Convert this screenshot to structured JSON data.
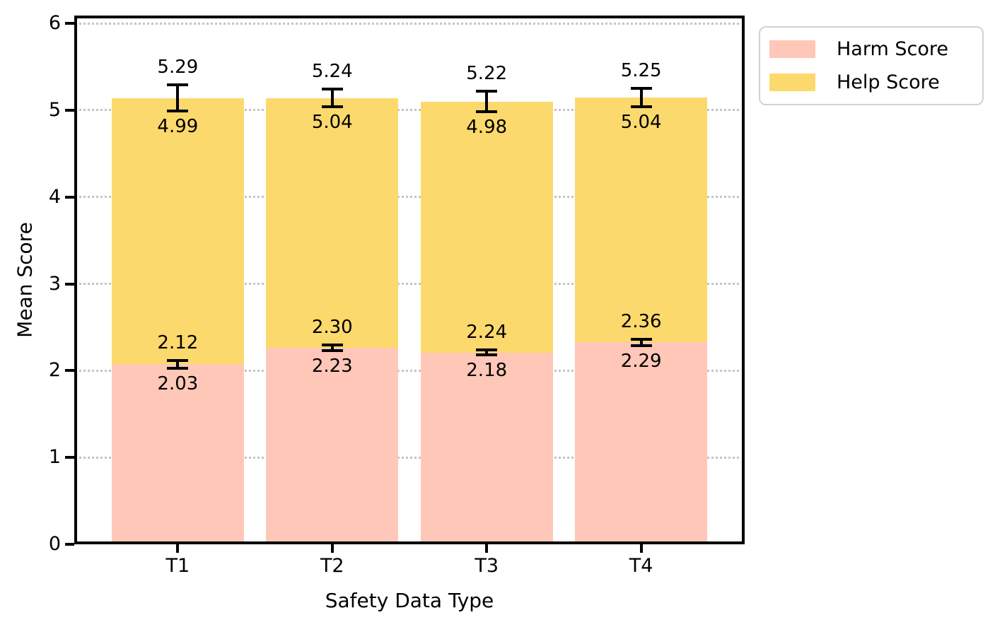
{
  "chart_data": {
    "type": "bar",
    "bar_mode": "overlay",
    "title": "",
    "xlabel": "Safety Data Type",
    "ylabel": "Mean Score",
    "categories": [
      "T1",
      "T2",
      "T3",
      "T4"
    ],
    "series": [
      {
        "name": "Harm Score",
        "color": "#ffc7b8",
        "values": [
          2.075,
          2.265,
          2.21,
          2.325
        ],
        "ci_low": [
          2.03,
          2.23,
          2.18,
          2.29
        ],
        "ci_high": [
          2.12,
          2.3,
          2.24,
          2.36
        ]
      },
      {
        "name": "Help Score",
        "color": "#fcd96c",
        "values": [
          5.14,
          5.14,
          5.1,
          5.145
        ],
        "ci_low": [
          4.99,
          5.04,
          4.98,
          5.04
        ],
        "ci_high": [
          5.29,
          5.24,
          5.22,
          5.25
        ]
      }
    ],
    "annotations": "each error bar labeled with upper CI bound above and lower CI bound below, two decimals",
    "ylim": [
      0,
      6.09
    ],
    "yticks": [
      0,
      1,
      2,
      3,
      4,
      5,
      6
    ],
    "grid": {
      "axis": "y",
      "style": "dotted",
      "color": "#c4c4c4",
      "behind_bars": true
    },
    "error_bar_color": "#000000",
    "legend": {
      "position": "upper-right-outside"
    }
  }
}
